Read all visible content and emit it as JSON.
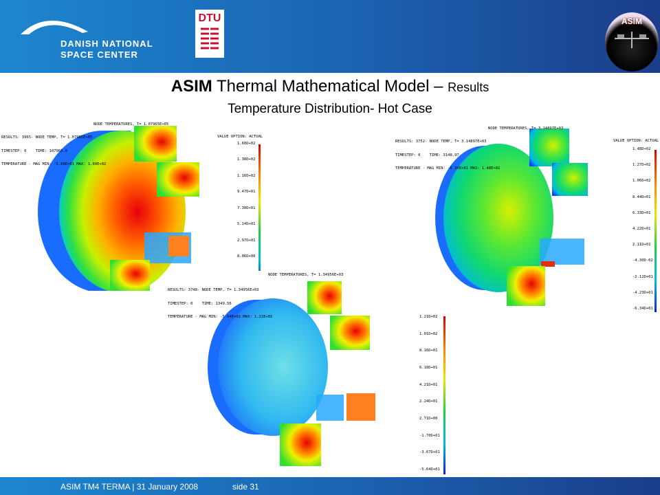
{
  "header": {
    "logo_lines": [
      "DANISH NATIONAL",
      "SPACE CENTER"
    ],
    "dtu": "DTU",
    "badge": "ASIM"
  },
  "title": {
    "bold": "ASIM",
    "main": "Thermal Mathematical Model",
    "dash": "–",
    "small": "Results"
  },
  "subtitle": "Temperature Distribution- Hot Case",
  "panels": [
    {
      "header": "NODE TEMPERATURES, T= 1.07965E+05",
      "results": [
        "RESULTS: 3965- NODE TEMP, T= 1.07965E+05",
        "TIMESTEP: 0    TIME: 107965.0",
        "TEMPERATURE - MAG MIN: -5.69E+01 MAX: 1.60E+02"
      ],
      "legend_title": "VALUE OPTION: ACTUAL",
      "legend": [
        "1.60D+02",
        "1.38D+02",
        "1.16D+02",
        "9.47D+01",
        "7.30D+01",
        "5.14D+01",
        "2.97D+01",
        "8.06D+00"
      ]
    },
    {
      "header": "NODE TEMPERATURES, T= 3.14897E+03",
      "results": [
        "RESULTS: 3752- NODE TEMP, T= 3.14897E+03",
        "TIMESTEP: 0    TIME: 3148.97",
        "TEMPERATURE - MAG MIN: -6.34E+01 MAX: 1.48E+02"
      ],
      "legend_title": "VALUE OPTION: ACTUAL",
      "legend": [
        "1.48D+02",
        "1.27D+02",
        "1.06D+02",
        "8.44D+01",
        "6.33D+01",
        "4.22D+01",
        "2.11D+01",
        "-4.30D-02",
        "-2.12D+01",
        "-4.23D+01",
        "-6.34D+01"
      ]
    },
    {
      "header": "NODE TEMPERATURES, T= 1.34956E+03",
      "results": [
        "RESULTS: 3748- NODE TEMP, T= 1.34956E+03",
        "TIMESTEP: 0    TIME: 1349.56",
        "TEMPERATURE - MAG MIN: -5.64E+01 MAX: 1.21E+02"
      ],
      "legend": [
        "1.21D+02",
        "1.01D+02",
        "8.16D+01",
        "6.18D+01",
        "4.21D+01",
        "2.24D+01",
        "2.71D+00",
        "-1.70D+01",
        "-3.67D+01",
        "-5.64D+01"
      ]
    }
  ],
  "footer": {
    "left": "ASIM TM4  TERMA | 31 January 2008",
    "right": "side 31"
  }
}
